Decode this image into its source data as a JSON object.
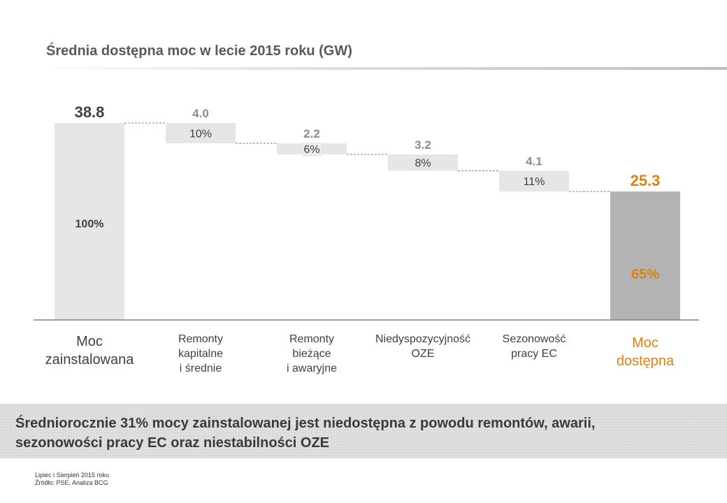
{
  "title": "Średnia dostępna moc w lecie 2015 roku (GW)",
  "chart_data": {
    "type": "waterfall",
    "title": "Średnia dostępna moc w lecie 2015 roku (GW)",
    "unit": "GW",
    "ylim": [
      0,
      38.8
    ],
    "categories": [
      "Moc zainstalowana",
      "Remonty kapitalne i średnie",
      "Remonty bieżące i awaryjne",
      "Niedyspozycyjność OZE",
      "Sezonowość pracy EC",
      "Moc dostępna"
    ],
    "bars": [
      {
        "kind": "total",
        "label_lines": [
          "Moc",
          "zainstalowana"
        ],
        "value": 38.8,
        "value_label": "38.8",
        "percent_label": "100%"
      },
      {
        "kind": "decrement",
        "label_lines": [
          "Remonty",
          "kapitalne",
          "i średnie"
        ],
        "value": 4.0,
        "value_label": "4.0",
        "percent_label": "10%"
      },
      {
        "kind": "decrement",
        "label_lines": [
          "Remonty",
          "bieżące",
          "i awaryjne"
        ],
        "value": 2.2,
        "value_label": "2.2",
        "percent_label": "6%"
      },
      {
        "kind": "decrement",
        "label_lines": [
          "Niedyspozycyjność",
          "OZE"
        ],
        "value": 3.2,
        "value_label": "3.2",
        "percent_label": "8%"
      },
      {
        "kind": "decrement",
        "label_lines": [
          "Sezonowość",
          "pracy EC"
        ],
        "value": 4.1,
        "value_label": "4.1",
        "percent_label": "11%"
      },
      {
        "kind": "result",
        "label_lines": [
          "Moc",
          "dostępna"
        ],
        "value": 25.3,
        "value_label": "25.3",
        "percent_label": "65%"
      }
    ]
  },
  "colors": {
    "total_bar": "#e6e6e6",
    "step_bar": "#e6e6e6",
    "result_bar": "#b3b3b3",
    "accent": "#d98215",
    "value_dark": "#404040",
    "value_muted": "#8c8c8c",
    "axis": "#808080"
  },
  "summary": {
    "line1": "Średniorocznie 31% mocy zainstalowanej jest niedostępna z powodu remontów, awarii,",
    "line2": "sezonowości pracy EC oraz niestabilności OZE"
  },
  "footnote": {
    "line1": "Lipiec i Sierpień 2015 roku",
    "line2": "Źródło: PSE,  Analiza BCG"
  }
}
